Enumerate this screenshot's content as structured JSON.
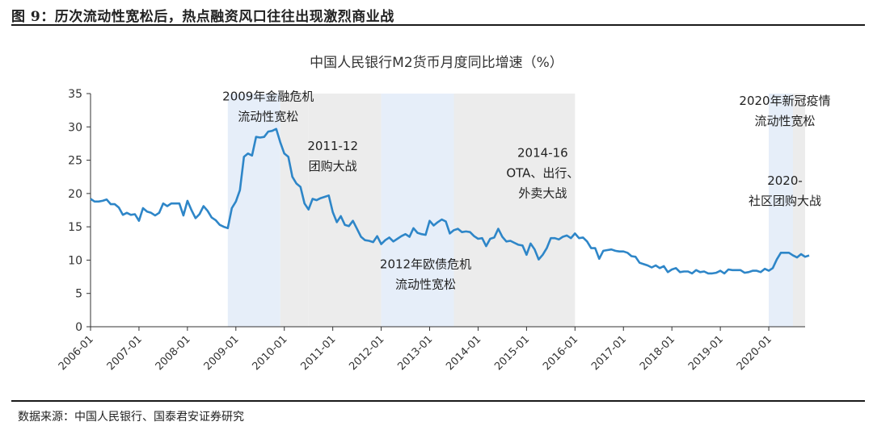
{
  "figure": {
    "title": "图 9：历次流动性宽松后，热点融资风口往往出现激烈商业战",
    "source": "数据来源：中国人民银行、国泰君安证券研究"
  },
  "colors": {
    "line": "#2e86c8",
    "band_blue": "#e6eef9",
    "band_gray": "#ececec",
    "axis": "#333333",
    "text": "#222222"
  },
  "chart_data": {
    "type": "line",
    "title": "中国人民银行M2货币月度同比增速（%）",
    "xlabel": "",
    "ylabel": "",
    "xlim": [
      "2006-01",
      "2020-10"
    ],
    "ylim": [
      0,
      35
    ],
    "yticks": [
      0,
      5,
      10,
      15,
      20,
      25,
      30,
      35
    ],
    "xticks": [
      "2006-01",
      "2007-01",
      "2008-01",
      "2009-01",
      "2010-01",
      "2011-01",
      "2012-01",
      "2013-01",
      "2014-01",
      "2015-01",
      "2016-01",
      "2017-01",
      "2018-01",
      "2019-01",
      "2020-01"
    ],
    "grid": false,
    "legend": "none",
    "series": [
      {
        "name": "",
        "points": [
          [
            "2006-01",
            19.2
          ],
          [
            "2006-02",
            18.8
          ],
          [
            "2006-03",
            18.8
          ],
          [
            "2006-04",
            18.9
          ],
          [
            "2006-05",
            19.1
          ],
          [
            "2006-06",
            18.4
          ],
          [
            "2006-07",
            18.4
          ],
          [
            "2006-08",
            17.9
          ],
          [
            "2006-09",
            16.8
          ],
          [
            "2006-10",
            17.1
          ],
          [
            "2006-11",
            16.8
          ],
          [
            "2006-12",
            16.9
          ],
          [
            "2007-01",
            15.9
          ],
          [
            "2007-02",
            17.8
          ],
          [
            "2007-03",
            17.3
          ],
          [
            "2007-04",
            17.1
          ],
          [
            "2007-05",
            16.7
          ],
          [
            "2007-06",
            17.1
          ],
          [
            "2007-07",
            18.5
          ],
          [
            "2007-08",
            18.1
          ],
          [
            "2007-09",
            18.5
          ],
          [
            "2007-10",
            18.5
          ],
          [
            "2007-11",
            18.5
          ],
          [
            "2007-12",
            16.7
          ],
          [
            "2008-01",
            18.9
          ],
          [
            "2008-02",
            17.5
          ],
          [
            "2008-03",
            16.3
          ],
          [
            "2008-04",
            16.9
          ],
          [
            "2008-05",
            18.1
          ],
          [
            "2008-06",
            17.4
          ],
          [
            "2008-07",
            16.4
          ],
          [
            "2008-08",
            16.0
          ],
          [
            "2008-09",
            15.3
          ],
          [
            "2008-10",
            15.0
          ],
          [
            "2008-11",
            14.8
          ],
          [
            "2008-12",
            17.8
          ],
          [
            "2009-01",
            18.8
          ],
          [
            "2009-02",
            20.5
          ],
          [
            "2009-03",
            25.5
          ],
          [
            "2009-04",
            26.0
          ],
          [
            "2009-05",
            25.7
          ],
          [
            "2009-06",
            28.5
          ],
          [
            "2009-07",
            28.4
          ],
          [
            "2009-08",
            28.5
          ],
          [
            "2009-09",
            29.3
          ],
          [
            "2009-10",
            29.4
          ],
          [
            "2009-11",
            29.7
          ],
          [
            "2009-12",
            27.7
          ],
          [
            "2010-01",
            26.0
          ],
          [
            "2010-02",
            25.5
          ],
          [
            "2010-03",
            22.5
          ],
          [
            "2010-04",
            21.5
          ],
          [
            "2010-05",
            21.0
          ],
          [
            "2010-06",
            18.5
          ],
          [
            "2010-07",
            17.6
          ],
          [
            "2010-08",
            19.2
          ],
          [
            "2010-09",
            19.0
          ],
          [
            "2010-10",
            19.3
          ],
          [
            "2010-11",
            19.5
          ],
          [
            "2010-12",
            19.7
          ],
          [
            "2011-01",
            17.2
          ],
          [
            "2011-02",
            15.7
          ],
          [
            "2011-03",
            16.6
          ],
          [
            "2011-04",
            15.3
          ],
          [
            "2011-05",
            15.1
          ],
          [
            "2011-06",
            15.9
          ],
          [
            "2011-07",
            14.7
          ],
          [
            "2011-08",
            13.5
          ],
          [
            "2011-09",
            13.0
          ],
          [
            "2011-10",
            12.9
          ],
          [
            "2011-11",
            12.7
          ],
          [
            "2011-12",
            13.6
          ],
          [
            "2012-01",
            12.4
          ],
          [
            "2012-02",
            13.0
          ],
          [
            "2012-03",
            13.4
          ],
          [
            "2012-04",
            12.8
          ],
          [
            "2012-05",
            13.2
          ],
          [
            "2012-06",
            13.6
          ],
          [
            "2012-07",
            13.9
          ],
          [
            "2012-08",
            13.5
          ],
          [
            "2012-09",
            14.8
          ],
          [
            "2012-10",
            14.1
          ],
          [
            "2012-11",
            13.9
          ],
          [
            "2012-12",
            13.8
          ],
          [
            "2013-01",
            15.9
          ],
          [
            "2013-02",
            15.2
          ],
          [
            "2013-03",
            15.7
          ],
          [
            "2013-04",
            16.1
          ],
          [
            "2013-05",
            15.8
          ],
          [
            "2013-06",
            14.0
          ],
          [
            "2013-07",
            14.5
          ],
          [
            "2013-08",
            14.7
          ],
          [
            "2013-09",
            14.2
          ],
          [
            "2013-10",
            14.3
          ],
          [
            "2013-11",
            14.2
          ],
          [
            "2013-12",
            13.6
          ],
          [
            "2014-01",
            13.2
          ],
          [
            "2014-02",
            13.3
          ],
          [
            "2014-03",
            12.1
          ],
          [
            "2014-04",
            13.2
          ],
          [
            "2014-05",
            13.4
          ],
          [
            "2014-06",
            14.7
          ],
          [
            "2014-07",
            13.5
          ],
          [
            "2014-08",
            12.8
          ],
          [
            "2014-09",
            12.9
          ],
          [
            "2014-10",
            12.6
          ],
          [
            "2014-11",
            12.3
          ],
          [
            "2014-12",
            12.2
          ],
          [
            "2015-01",
            10.8
          ],
          [
            "2015-02",
            12.5
          ],
          [
            "2015-03",
            11.6
          ],
          [
            "2015-04",
            10.1
          ],
          [
            "2015-05",
            10.8
          ],
          [
            "2015-06",
            11.8
          ],
          [
            "2015-07",
            13.3
          ],
          [
            "2015-08",
            13.3
          ],
          [
            "2015-09",
            13.1
          ],
          [
            "2015-10",
            13.5
          ],
          [
            "2015-11",
            13.7
          ],
          [
            "2015-12",
            13.3
          ],
          [
            "2016-01",
            14.0
          ],
          [
            "2016-02",
            13.3
          ],
          [
            "2016-03",
            13.4
          ],
          [
            "2016-04",
            12.8
          ],
          [
            "2016-05",
            11.8
          ],
          [
            "2016-06",
            11.8
          ],
          [
            "2016-07",
            10.2
          ],
          [
            "2016-08",
            11.4
          ],
          [
            "2016-09",
            11.5
          ],
          [
            "2016-10",
            11.6
          ],
          [
            "2016-11",
            11.4
          ],
          [
            "2016-12",
            11.3
          ],
          [
            "2017-01",
            11.3
          ],
          [
            "2017-02",
            11.1
          ],
          [
            "2017-03",
            10.6
          ],
          [
            "2017-04",
            10.5
          ],
          [
            "2017-05",
            9.6
          ],
          [
            "2017-06",
            9.4
          ],
          [
            "2017-07",
            9.2
          ],
          [
            "2017-08",
            8.9
          ],
          [
            "2017-09",
            9.2
          ],
          [
            "2017-10",
            8.8
          ],
          [
            "2017-11",
            9.1
          ],
          [
            "2017-12",
            8.2
          ],
          [
            "2018-01",
            8.6
          ],
          [
            "2018-02",
            8.8
          ],
          [
            "2018-03",
            8.2
          ],
          [
            "2018-04",
            8.3
          ],
          [
            "2018-05",
            8.3
          ],
          [
            "2018-06",
            8.0
          ],
          [
            "2018-07",
            8.5
          ],
          [
            "2018-08",
            8.2
          ],
          [
            "2018-09",
            8.3
          ],
          [
            "2018-10",
            8.0
          ],
          [
            "2018-11",
            8.0
          ],
          [
            "2018-12",
            8.1
          ],
          [
            "2019-01",
            8.4
          ],
          [
            "2019-02",
            8.0
          ],
          [
            "2019-03",
            8.6
          ],
          [
            "2019-04",
            8.5
          ],
          [
            "2019-05",
            8.5
          ],
          [
            "2019-06",
            8.5
          ],
          [
            "2019-07",
            8.1
          ],
          [
            "2019-08",
            8.2
          ],
          [
            "2019-09",
            8.4
          ],
          [
            "2019-10",
            8.4
          ],
          [
            "2019-11",
            8.2
          ],
          [
            "2019-12",
            8.7
          ],
          [
            "2020-01",
            8.4
          ],
          [
            "2020-02",
            8.8
          ],
          [
            "2020-03",
            10.1
          ],
          [
            "2020-04",
            11.1
          ],
          [
            "2020-05",
            11.1
          ],
          [
            "2020-06",
            11.1
          ],
          [
            "2020-07",
            10.7
          ],
          [
            "2020-08",
            10.4
          ],
          [
            "2020-09",
            10.9
          ],
          [
            "2020-10",
            10.5
          ],
          [
            "2020-11",
            10.7
          ]
        ]
      }
    ],
    "bands": [
      {
        "from": "2008-11",
        "to": "2009-12",
        "fill": "blue"
      },
      {
        "from": "2009-12",
        "to": "2010-07",
        "fill": "gray"
      },
      {
        "from": "2010-07",
        "to": "2012-01",
        "fill": "gray"
      },
      {
        "from": "2012-01",
        "to": "2013-07",
        "fill": "blue"
      },
      {
        "from": "2013-07",
        "to": "2016-01",
        "fill": "gray"
      },
      {
        "from": "2020-01",
        "to": "2020-07",
        "fill": "blue"
      },
      {
        "from": "2020-07",
        "to": "2020-11",
        "fill": "gray"
      }
    ],
    "annotations": [
      {
        "lines": [
          "2009年金融危机",
          "流动性宽松"
        ],
        "x": "2009-09",
        "y": 34.0
      },
      {
        "lines": [
          "2011-12",
          "团购大战"
        ],
        "x": "2011-01",
        "y": 26.5
      },
      {
        "lines": [
          "2014-16",
          "OTA、出行、",
          "外卖大战"
        ],
        "x": "2015-05",
        "y": 25.5
      },
      {
        "lines": [
          "2012年欧债危机",
          "流动性宽松"
        ],
        "x": "2012-12",
        "y": 8.8
      },
      {
        "lines": [
          "2020年新冠疫情",
          "流动性宽松"
        ],
        "x": "2020-05",
        "y": 33.3
      },
      {
        "lines": [
          "2020-",
          "社区团购大战"
        ],
        "x": "2020-05",
        "y": 21.3
      }
    ]
  }
}
